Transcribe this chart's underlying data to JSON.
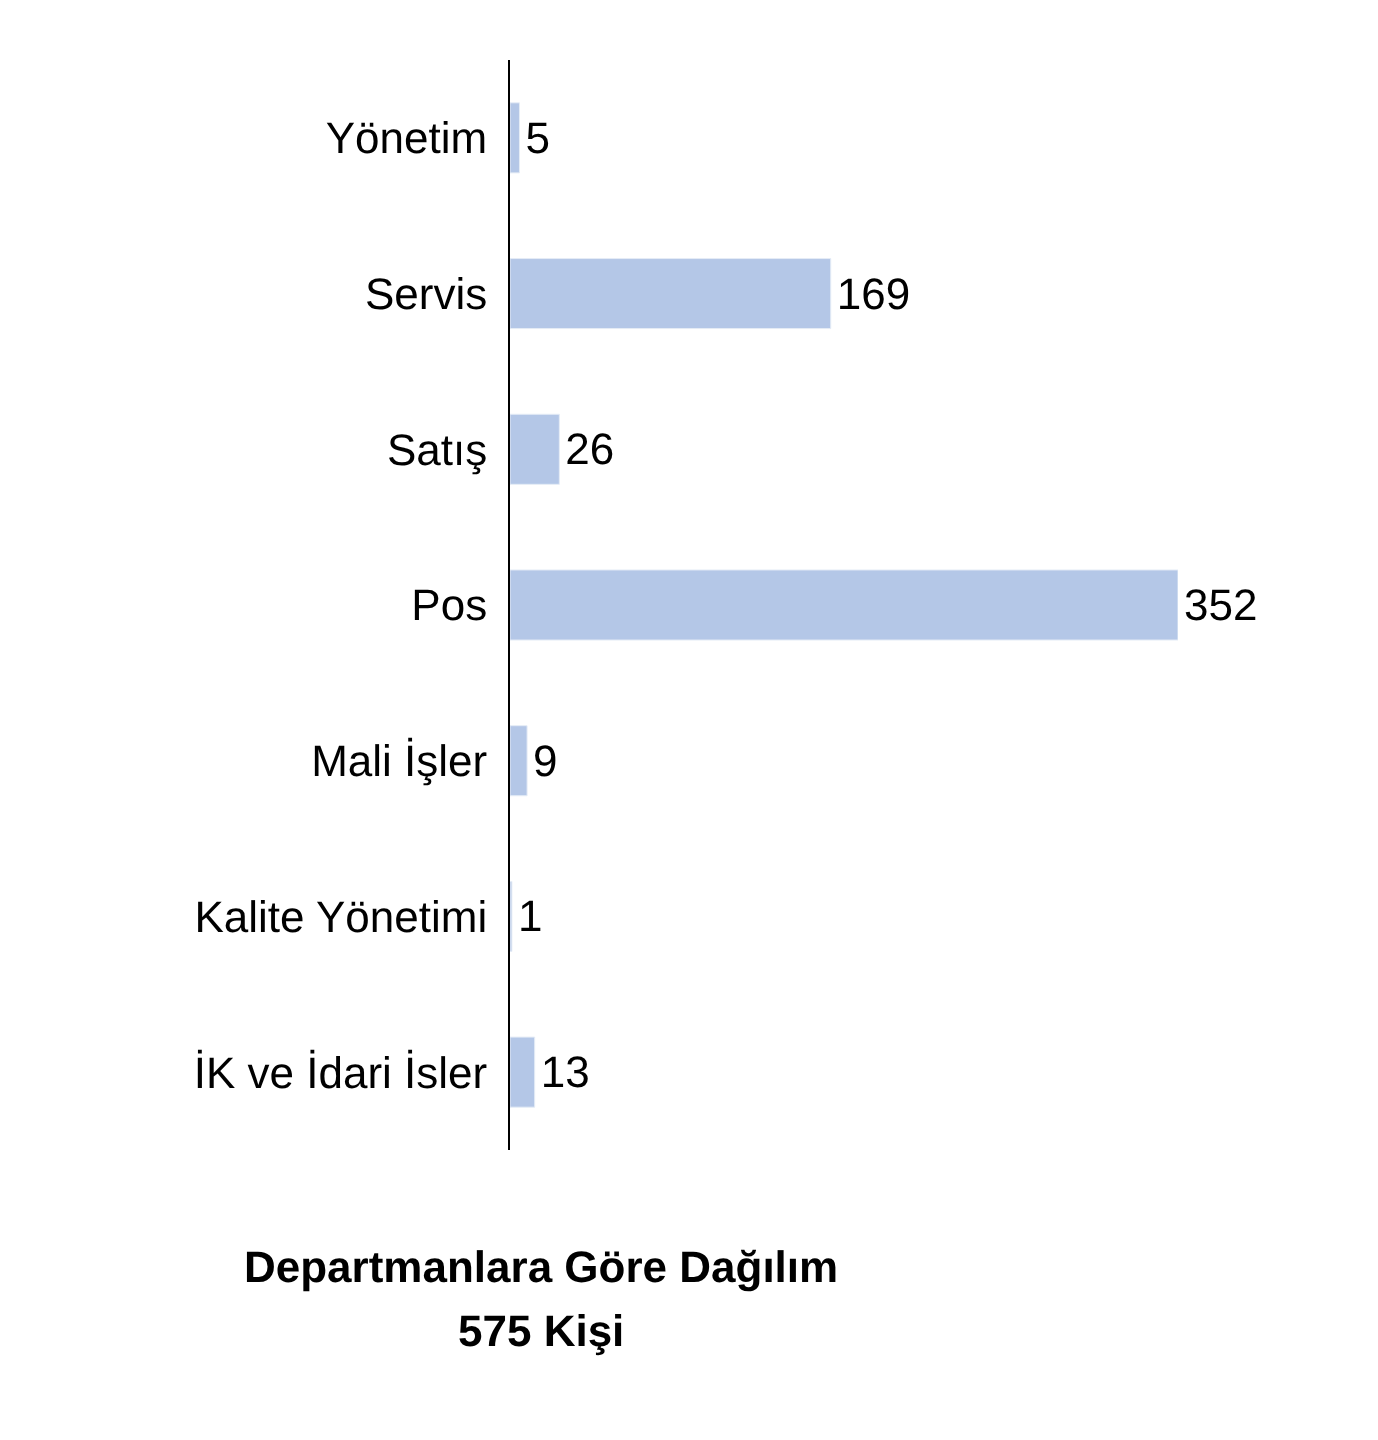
{
  "chart_data": {
    "type": "bar",
    "orientation": "horizontal",
    "title": "Departmanlara Göre Dağılım",
    "subtitle": "575 Kişi",
    "categories": [
      "Yönetim",
      "Servis",
      "Satış",
      "Pos",
      "Mali İşler",
      "Kalite Yönetimi",
      "İK ve İdari İsler"
    ],
    "values": [
      5,
      169,
      26,
      352,
      9,
      1,
      13
    ],
    "color": "#b4c7e7",
    "data_labels": true,
    "legend": false,
    "tick_labels": "y"
  }
}
